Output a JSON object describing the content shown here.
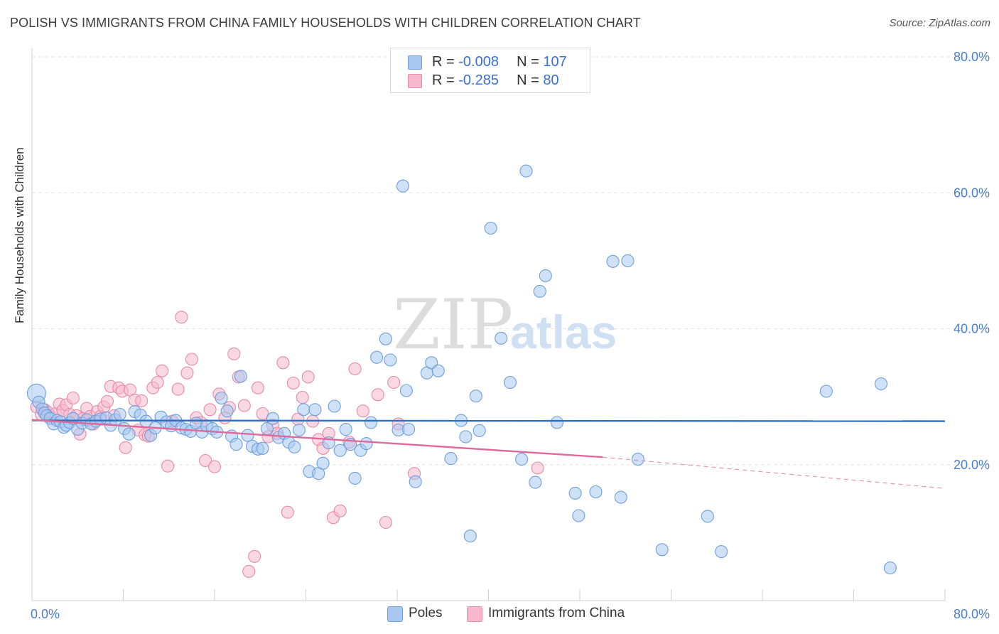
{
  "title": "POLISH VS IMMIGRANTS FROM CHINA FAMILY HOUSEHOLDS WITH CHILDREN CORRELATION CHART",
  "source": "Source: ZipAtlas.com",
  "watermark": {
    "zip": "ZIP",
    "atlas": "atlas"
  },
  "legend_top": {
    "rows": [
      {
        "r_label": "R = ",
        "r_value": "-0.008",
        "n_label": "N = ",
        "n_value": "107",
        "color": "#a8c8f0"
      },
      {
        "r_label": "R = ",
        "r_value": "-0.285",
        "n_label": "N = ",
        "n_value": "80",
        "color": "#f6b8cc"
      }
    ]
  },
  "legend_bottom": [
    {
      "label": "Poles",
      "color": "#a8c8f0"
    },
    {
      "label": "Immigrants from China",
      "color": "#f6b8cc"
    }
  ],
  "chart_data": {
    "type": "scatter",
    "title": "POLISH VS IMMIGRANTS FROM CHINA FAMILY HOUSEHOLDS WITH CHILDREN CORRELATION CHART",
    "xlabel": "",
    "ylabel": "Family Households with Children",
    "xlim": [
      0,
      80
    ],
    "ylim": [
      0,
      80
    ],
    "x_tick_labels": [
      "0.0%",
      "80.0%"
    ],
    "y_tick_labels": [
      "20.0%",
      "40.0%",
      "60.0%",
      "80.0%"
    ],
    "y_ticks": [
      20,
      40,
      60,
      80
    ],
    "grid": true,
    "legend_placement": "top-center",
    "series": [
      {
        "name": "Poles",
        "color": "#a8c8f0",
        "stroke": "#6f9fdd",
        "trend": {
          "x": [
            0,
            80
          ],
          "y": [
            26.5,
            26.4
          ],
          "color": "#2f6fc6"
        },
        "points": [
          [
            0.4,
            30.5
          ],
          [
            0.6,
            29.2
          ],
          [
            0.9,
            28.2
          ],
          [
            1.1,
            27.6
          ],
          [
            1.3,
            27.2
          ],
          [
            1.6,
            26.8
          ],
          [
            1.9,
            26.0
          ],
          [
            2.2,
            26.5
          ],
          [
            2.5,
            26.3
          ],
          [
            2.8,
            25.5
          ],
          [
            3.0,
            25.8
          ],
          [
            3.3,
            26.2
          ],
          [
            3.6,
            26.8
          ],
          [
            4.0,
            25.2
          ],
          [
            4.4,
            26.1
          ],
          [
            4.8,
            26.6
          ],
          [
            5.2,
            26.0
          ],
          [
            5.6,
            26.4
          ],
          [
            6.0,
            26.7
          ],
          [
            6.5,
            26.9
          ],
          [
            6.9,
            25.8
          ],
          [
            7.3,
            26.6
          ],
          [
            7.7,
            27.4
          ],
          [
            8.1,
            25.3
          ],
          [
            8.5,
            24.5
          ],
          [
            9.0,
            27.8
          ],
          [
            9.5,
            27.3
          ],
          [
            10.0,
            26.4
          ],
          [
            10.4,
            24.3
          ],
          [
            10.8,
            25.4
          ],
          [
            11.3,
            27.0
          ],
          [
            11.8,
            26.3
          ],
          [
            12.2,
            25.7
          ],
          [
            12.6,
            26.5
          ],
          [
            13.1,
            25.4
          ],
          [
            13.5,
            25.2
          ],
          [
            13.9,
            24.9
          ],
          [
            14.4,
            26.1
          ],
          [
            14.9,
            24.8
          ],
          [
            15.3,
            25.7
          ],
          [
            15.8,
            25.3
          ],
          [
            16.2,
            24.8
          ],
          [
            16.6,
            29.8
          ],
          [
            17.1,
            27.9
          ],
          [
            17.5,
            24.2
          ],
          [
            17.9,
            23.0
          ],
          [
            18.3,
            33.0
          ],
          [
            18.9,
            24.3
          ],
          [
            19.3,
            22.7
          ],
          [
            19.8,
            22.3
          ],
          [
            20.2,
            22.4
          ],
          [
            20.6,
            25.3
          ],
          [
            21.1,
            26.8
          ],
          [
            21.6,
            24.0
          ],
          [
            22.1,
            24.6
          ],
          [
            22.5,
            23.3
          ],
          [
            23.0,
            22.6
          ],
          [
            23.4,
            25.1
          ],
          [
            23.8,
            28.1
          ],
          [
            24.3,
            19.0
          ],
          [
            24.8,
            28.1
          ],
          [
            25.1,
            18.7
          ],
          [
            25.5,
            20.2
          ],
          [
            26.0,
            23.2
          ],
          [
            26.5,
            28.6
          ],
          [
            27.0,
            22.1
          ],
          [
            27.5,
            25.2
          ],
          [
            27.9,
            23.0
          ],
          [
            28.3,
            18.0
          ],
          [
            28.8,
            22.1
          ],
          [
            29.3,
            23.1
          ],
          [
            29.7,
            26.2
          ],
          [
            30.2,
            35.8
          ],
          [
            31.0,
            38.5
          ],
          [
            31.4,
            35.4
          ],
          [
            32.1,
            25.1
          ],
          [
            32.5,
            61.0
          ],
          [
            32.8,
            30.9
          ],
          [
            33.0,
            25.2
          ],
          [
            33.6,
            17.5
          ],
          [
            34.6,
            33.5
          ],
          [
            35.0,
            35.0
          ],
          [
            35.6,
            33.8
          ],
          [
            36.7,
            20.9
          ],
          [
            37.6,
            26.5
          ],
          [
            38.0,
            24.1
          ],
          [
            38.4,
            9.5
          ],
          [
            38.9,
            30.1
          ],
          [
            39.2,
            25.0
          ],
          [
            40.2,
            54.8
          ],
          [
            41.1,
            38.6
          ],
          [
            41.9,
            32.1
          ],
          [
            42.9,
            20.8
          ],
          [
            43.3,
            63.2
          ],
          [
            44.1,
            17.4
          ],
          [
            44.5,
            45.5
          ],
          [
            45.0,
            47.8
          ],
          [
            46.0,
            26.2
          ],
          [
            47.6,
            15.8
          ],
          [
            47.9,
            12.5
          ],
          [
            49.4,
            16.0
          ],
          [
            50.9,
            49.9
          ],
          [
            51.6,
            15.2
          ],
          [
            52.2,
            50.0
          ],
          [
            53.1,
            20.8
          ],
          [
            55.2,
            7.5
          ],
          [
            59.2,
            12.4
          ],
          [
            60.4,
            7.2
          ],
          [
            69.6,
            30.8
          ],
          [
            74.4,
            31.9
          ],
          [
            75.2,
            4.8
          ]
        ]
      },
      {
        "name": "Immigrants from China",
        "color": "#f6b8cc",
        "stroke": "#e98aa8",
        "trend": {
          "x": [
            0,
            50
          ],
          "y": [
            26.6,
            21.1
          ],
          "color": "#e0689a"
        },
        "trend_extension": {
          "x": [
            50,
            80
          ],
          "y": [
            21.1,
            16.5
          ]
        },
        "points": [
          [
            0.4,
            28.5
          ],
          [
            0.8,
            27.4
          ],
          [
            1.1,
            28.1
          ],
          [
            1.4,
            27.7
          ],
          [
            1.7,
            27.0
          ],
          [
            2.1,
            27.5
          ],
          [
            2.4,
            28.9
          ],
          [
            2.7,
            28.0
          ],
          [
            3.0,
            28.8
          ],
          [
            3.3,
            27.4
          ],
          [
            3.6,
            29.8
          ],
          [
            3.9,
            27.2
          ],
          [
            4.2,
            24.5
          ],
          [
            4.5,
            26.8
          ],
          [
            4.8,
            28.3
          ],
          [
            5.1,
            27.1
          ],
          [
            5.4,
            26.0
          ],
          [
            5.7,
            27.8
          ],
          [
            6.0,
            27.1
          ],
          [
            6.3,
            28.5
          ],
          [
            6.6,
            29.3
          ],
          [
            6.9,
            31.5
          ],
          [
            7.2,
            27.2
          ],
          [
            7.6,
            31.3
          ],
          [
            7.9,
            30.8
          ],
          [
            8.2,
            22.5
          ],
          [
            8.6,
            31.0
          ],
          [
            9.0,
            29.5
          ],
          [
            9.3,
            25.1
          ],
          [
            9.6,
            29.4
          ],
          [
            9.9,
            24.4
          ],
          [
            10.2,
            24.2
          ],
          [
            10.6,
            31.3
          ],
          [
            11.0,
            32.1
          ],
          [
            11.4,
            33.8
          ],
          [
            11.9,
            19.8
          ],
          [
            12.3,
            26.4
          ],
          [
            12.8,
            31.1
          ],
          [
            13.1,
            41.7
          ],
          [
            13.6,
            33.5
          ],
          [
            14.0,
            35.5
          ],
          [
            14.4,
            26.9
          ],
          [
            14.8,
            26.2
          ],
          [
            15.2,
            20.6
          ],
          [
            15.6,
            28.1
          ],
          [
            16.0,
            19.7
          ],
          [
            16.4,
            30.4
          ],
          [
            16.9,
            26.9
          ],
          [
            17.3,
            28.4
          ],
          [
            17.7,
            36.3
          ],
          [
            18.1,
            32.9
          ],
          [
            18.6,
            28.7
          ],
          [
            19.0,
            4.3
          ],
          [
            19.5,
            6.5
          ],
          [
            19.8,
            31.3
          ],
          [
            20.2,
            27.5
          ],
          [
            20.7,
            24.1
          ],
          [
            21.1,
            25.8
          ],
          [
            21.5,
            24.6
          ],
          [
            22.0,
            35.0
          ],
          [
            22.4,
            13.0
          ],
          [
            22.9,
            32.0
          ],
          [
            23.3,
            26.7
          ],
          [
            23.7,
            29.9
          ],
          [
            24.2,
            32.9
          ],
          [
            24.6,
            26.4
          ],
          [
            25.1,
            23.7
          ],
          [
            25.5,
            22.4
          ],
          [
            26.0,
            24.6
          ],
          [
            26.4,
            12.2
          ],
          [
            27.0,
            13.2
          ],
          [
            27.8,
            23.3
          ],
          [
            28.3,
            34.1
          ],
          [
            29.0,
            27.9
          ],
          [
            30.3,
            30.3
          ],
          [
            31.0,
            11.5
          ],
          [
            31.7,
            32.1
          ],
          [
            32.1,
            26.0
          ],
          [
            33.5,
            18.7
          ],
          [
            44.3,
            19.5
          ]
        ]
      }
    ]
  }
}
